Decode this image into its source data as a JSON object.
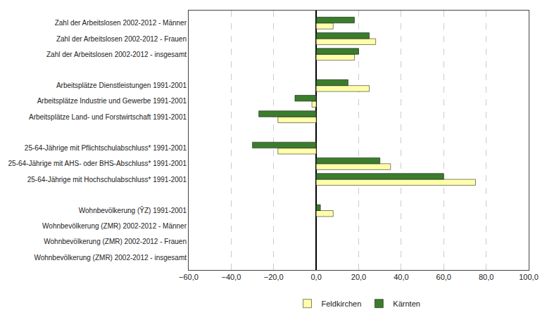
{
  "chart_data": {
    "type": "bar",
    "orientation": "horizontal",
    "categories": [
      "Wohnbevölkerung (ZMR) 2002-2012 - insgesamt",
      "Wohnbevölkerung (ZMR) 2002-2012 - Frauen",
      "Wohnbevölkerung (ZMR) 2002-2012 - Männer",
      "Wohnbevölkerung (ŶZ) 1991-2001",
      null,
      "25-64-Jährige mit Hochschulabschluss* 1991-2001",
      "25-64-Jährige mit AHS- oder BHS-Abschluss* 1991-2001",
      "25-64-Jährige mit Pflichtschulabschluss* 1991-2001",
      null,
      "Arbeitsplätze Land- und Forstwirtschaft 1991-2001",
      "Arbeitsplätze Industrie und Gewerbe 1991-2001",
      "Arbeitsplätze Dienstleistungen 1991-2001",
      null,
      "Zahl der Arbeitslosen 2002-2012 - insgesamt",
      "Zahl der Arbeitslosen 2002-2012 - Frauen",
      "Zahl der Arbeitslosen 2002-2012 - Männer"
    ],
    "series": [
      {
        "name": "Feldkirchen",
        "color": "#ffffaa",
        "values": [
          0.0,
          0.0,
          0.0,
          8.0,
          null,
          75.0,
          35.0,
          -18.0,
          null,
          -18.0,
          -2.0,
          25.0,
          null,
          18.0,
          28.0,
          8.0
        ]
      },
      {
        "name": "Kärnten",
        "color": "#3a7d2c",
        "values": [
          0.0,
          0.0,
          0.0,
          2.0,
          null,
          60.0,
          30.0,
          -30.0,
          null,
          -27.0,
          -10.0,
          15.0,
          null,
          20.0,
          25.0,
          18.0
        ]
      }
    ],
    "xlim": [
      -60,
      100
    ],
    "xticks": [
      {
        "value": -60,
        "label": "−60,0"
      },
      {
        "value": -40,
        "label": "−40,0"
      },
      {
        "value": -20,
        "label": "−20,0"
      },
      {
        "value": 0,
        "label": "0,0"
      },
      {
        "value": 20,
        "label": "20,0"
      },
      {
        "value": 40,
        "label": "40,0"
      },
      {
        "value": 60,
        "label": "60,0"
      },
      {
        "value": 80,
        "label": "80,0"
      },
      {
        "value": 100,
        "label": "100,0"
      }
    ],
    "grid": true,
    "legend": "bottom"
  }
}
